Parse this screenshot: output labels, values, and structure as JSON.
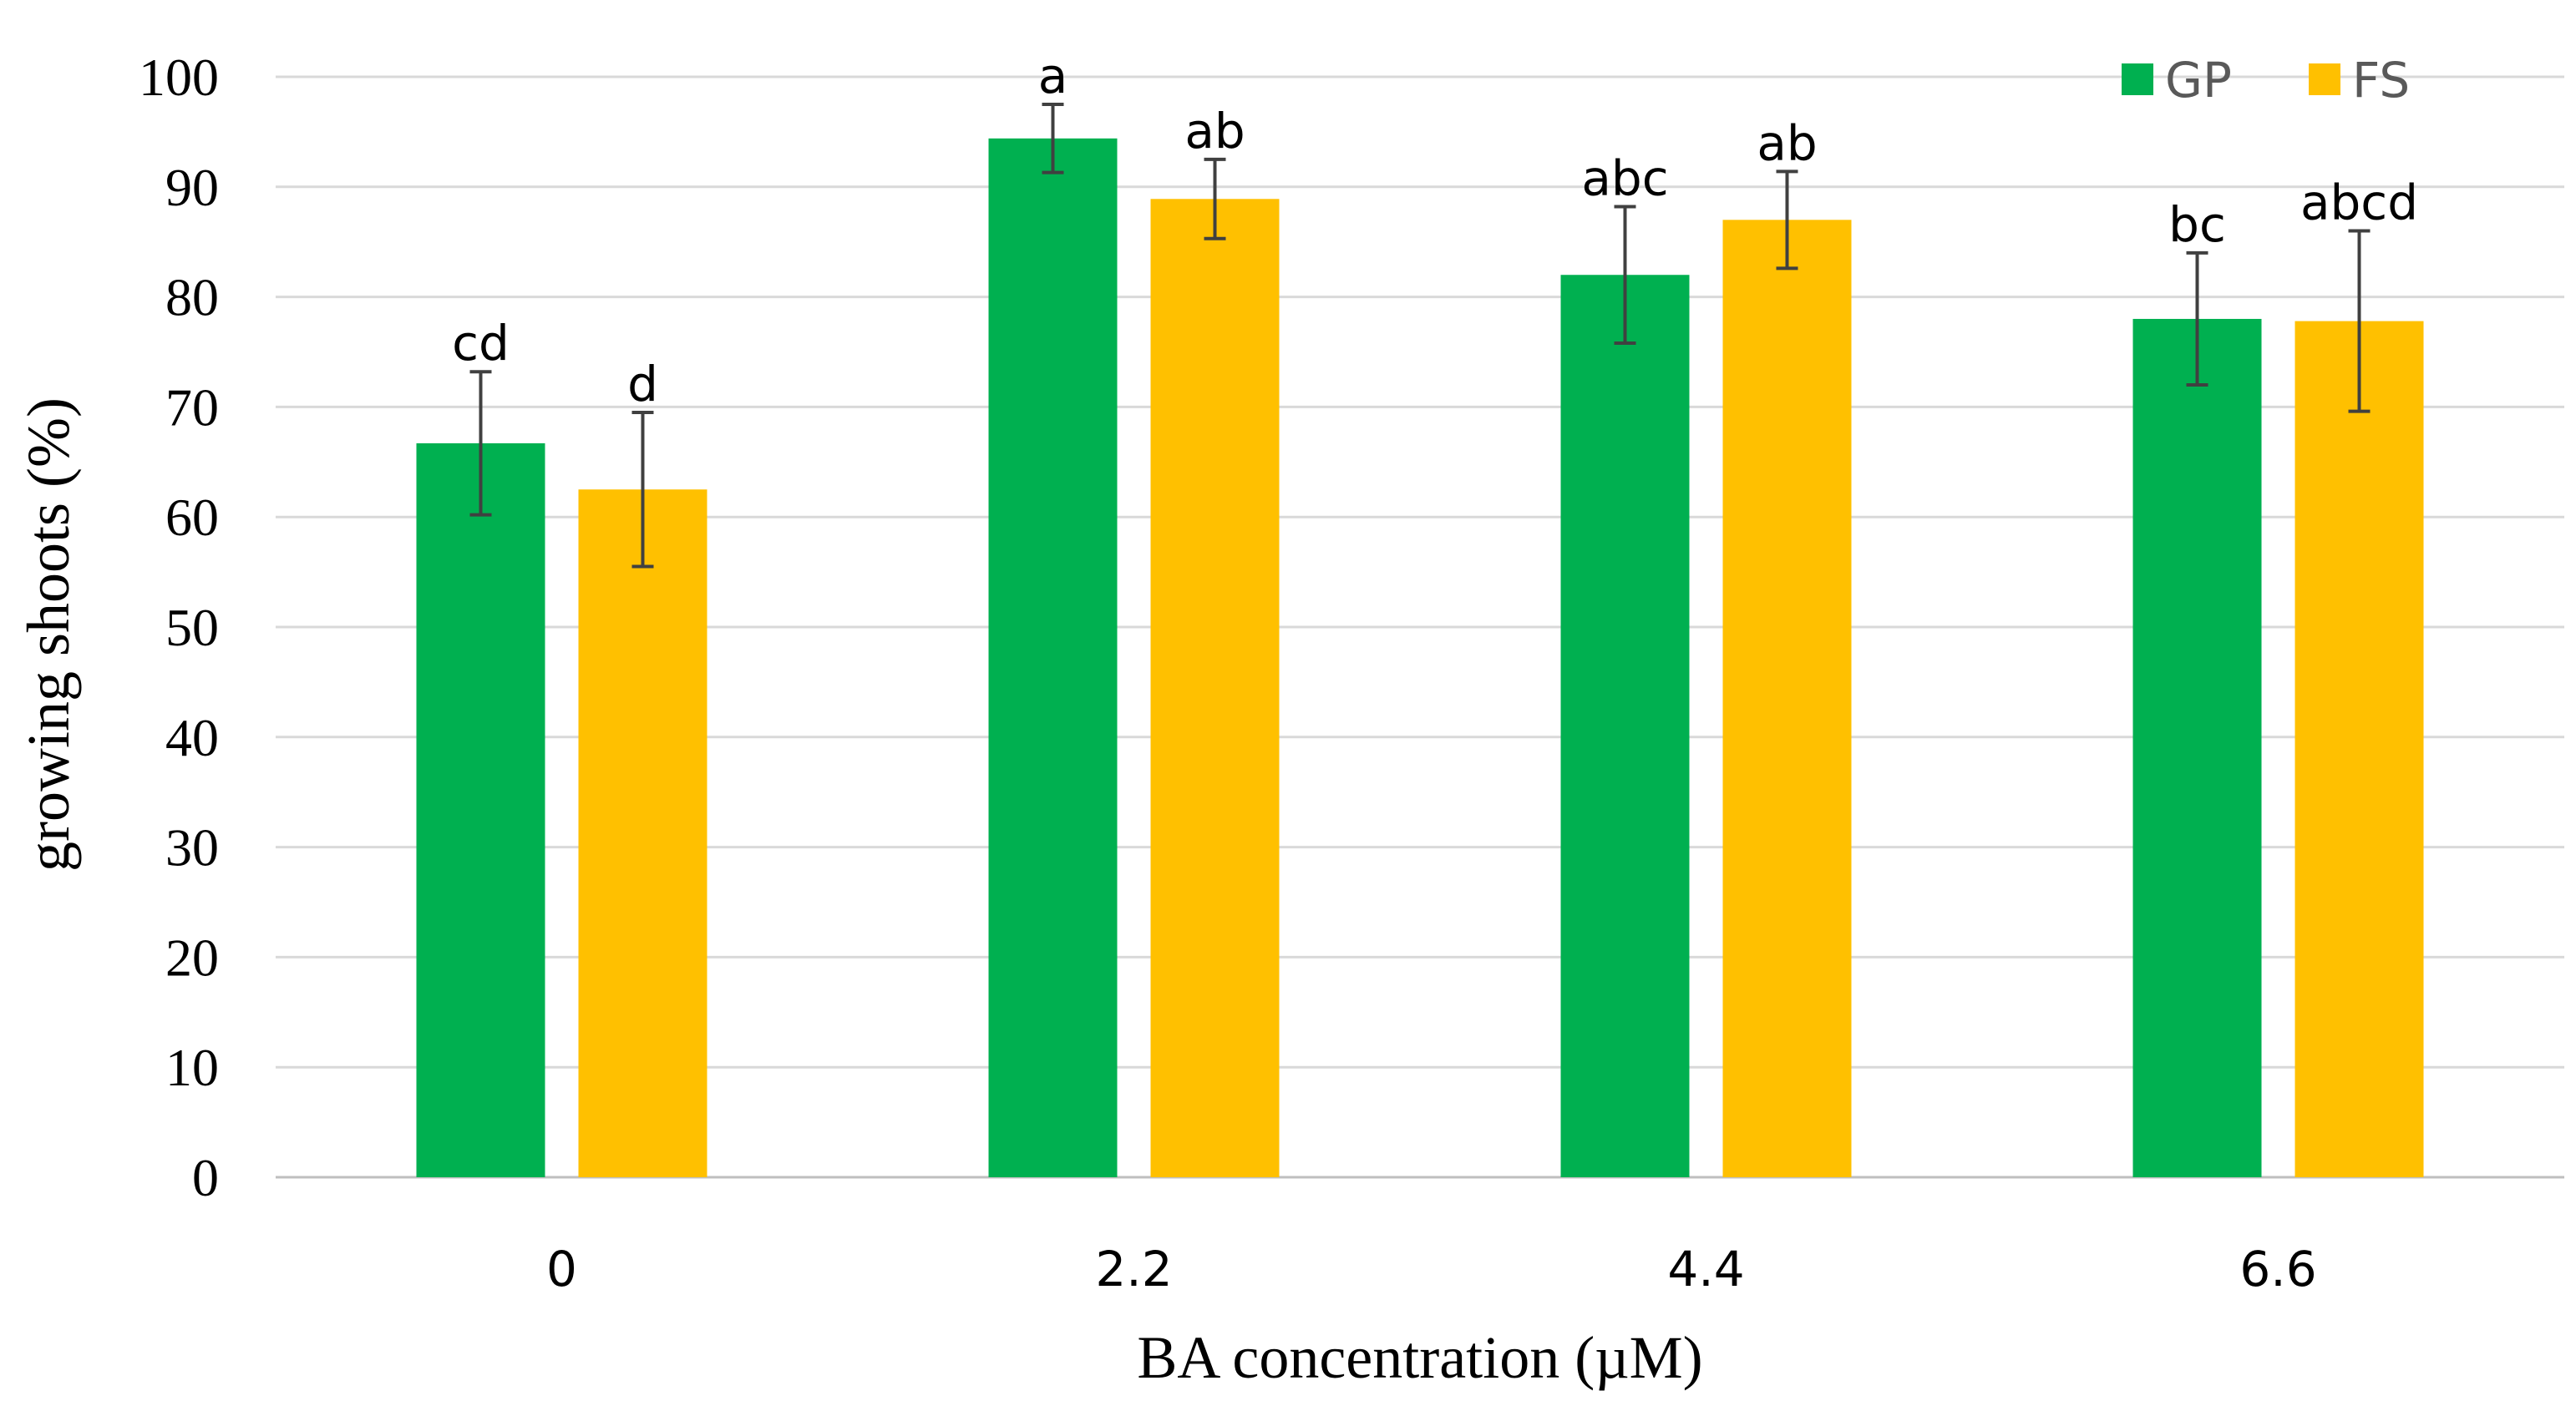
{
  "chart_data": {
    "type": "bar",
    "title": "",
    "xlabel": "BA concentration (µM)",
    "ylabel": "growing shoots (%)",
    "ylim": [
      0,
      100
    ],
    "yticks": [
      0,
      10,
      20,
      30,
      40,
      50,
      60,
      70,
      80,
      90,
      100
    ],
    "grid": true,
    "legend_position": "top-right",
    "categories": [
      "0",
      "2.2",
      "4.4",
      "6.6"
    ],
    "series": [
      {
        "name": "GP",
        "color": "#00b050",
        "values": [
          66.7,
          94.4,
          82.0,
          78.0
        ],
        "errors": [
          6.5,
          3.1,
          6.2,
          6.0
        ],
        "labels": [
          "cd",
          "a",
          "abc",
          "bc"
        ]
      },
      {
        "name": "FS",
        "color": "#ffc000",
        "values": [
          62.5,
          88.9,
          87.0,
          77.8
        ],
        "errors": [
          7.0,
          3.6,
          4.4,
          8.2
        ],
        "labels": [
          "d",
          "ab",
          "ab",
          "abcd"
        ]
      }
    ]
  }
}
